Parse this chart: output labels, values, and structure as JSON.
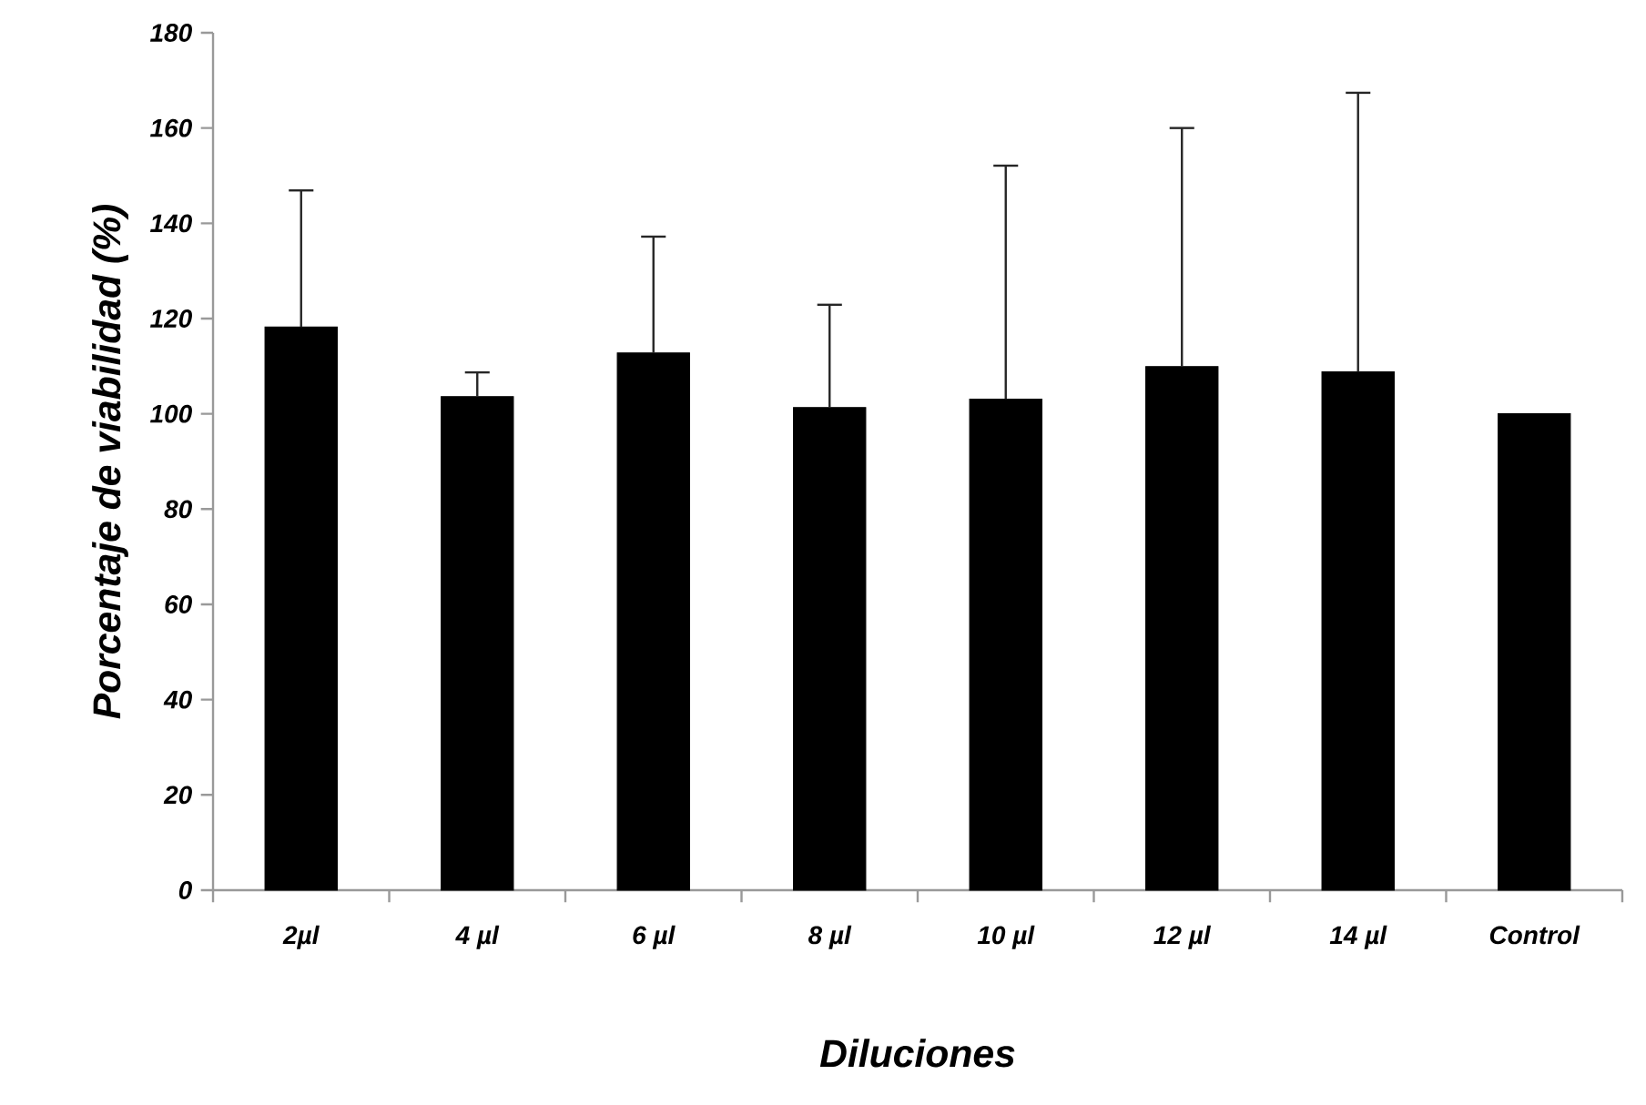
{
  "chart_data": {
    "type": "bar",
    "xlabel": "Diluciones",
    "ylabel": "Porcentaje de viabilidad (%)",
    "categories": [
      "2µl",
      "4 µl",
      "6 µl",
      "8 µl",
      "10 µl",
      "12 µl",
      "14 µl",
      "Control"
    ],
    "values": [
      118.2,
      103.6,
      112.8,
      101.3,
      103.1,
      109.9,
      108.8,
      100
    ],
    "errors": [
      [
        118.2,
        146.9
      ],
      [
        103.6,
        108.7
      ],
      [
        112.8,
        137.2
      ],
      [
        101.3,
        122.9
      ],
      [
        103.1,
        152.1
      ],
      [
        109.9,
        160.0
      ],
      [
        108.8,
        167.4
      ],
      null
    ],
    "color": "#000000",
    "ylim": [
      0,
      180
    ],
    "yticks": [
      0,
      20,
      40,
      60,
      80,
      100,
      120,
      140,
      160,
      180
    ],
    "grid": false
  }
}
